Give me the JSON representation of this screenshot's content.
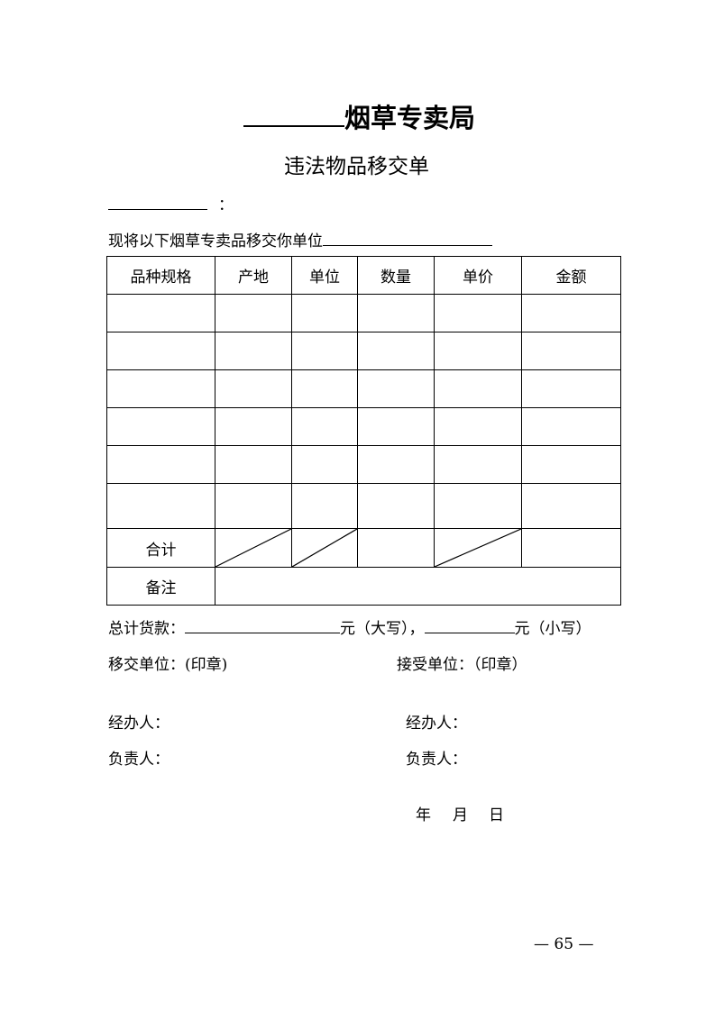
{
  "header": {
    "title": "烟草专卖局",
    "subtitle": "违法物品移交单"
  },
  "addressee_colon": "：",
  "intro": "现将以下烟草专卖品移交你单位",
  "table": {
    "columns": [
      "品种规格",
      "产地",
      "单位",
      "数量",
      "单价",
      "金额"
    ],
    "empty_rows": 6,
    "total_label": "合计",
    "total_diagonal_columns": [
      1,
      2,
      4
    ],
    "notes_label": "备注"
  },
  "amount": {
    "label": "总计货款：",
    "upper_suffix": "元（大写），",
    "lower_suffix": "元（小写）"
  },
  "seals": {
    "transfer": "移交单位：(印章)",
    "receive": "接受单位：（印章）"
  },
  "signatures": {
    "left": {
      "handler": "经办人：",
      "responsible": "负责人："
    },
    "right": {
      "handler": "经办人：",
      "responsible": "负责人："
    }
  },
  "date": {
    "year": "年",
    "month": "月",
    "day": "日"
  },
  "page_number": "— 65 —"
}
